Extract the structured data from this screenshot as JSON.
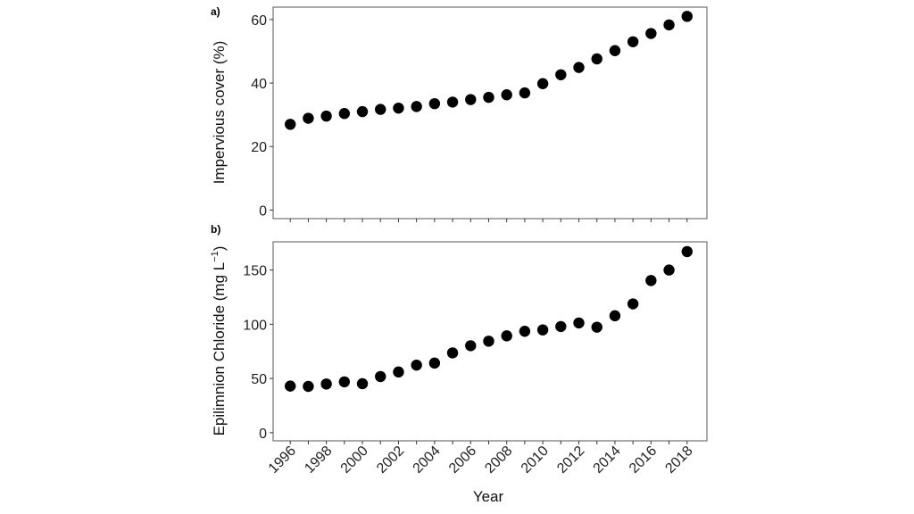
{
  "chart_data": [
    {
      "type": "scatter",
      "panel_label": "a)",
      "xlabel": "",
      "ylabel": "Impervious cover (%)",
      "ylim": [
        -2.7,
        63.9
      ],
      "yticks": [
        0,
        20,
        40,
        60
      ],
      "xlim": [
        1995.05,
        2019.1
      ],
      "xticks": [
        1996,
        1997,
        1998,
        1999,
        2000,
        2001,
        2002,
        2003,
        2004,
        2005,
        2006,
        2007,
        2008,
        2009,
        2010,
        2011,
        2012,
        2013,
        2014,
        2015,
        2016,
        2017,
        2018
      ],
      "grid": false,
      "marker_color": "#000000",
      "x": [
        1996,
        1997,
        1998,
        1999,
        2000,
        2001,
        2002,
        2003,
        2004,
        2005,
        2006,
        2007,
        2008,
        2009,
        2010,
        2011,
        2012,
        2013,
        2014,
        2015,
        2016,
        2017,
        2018
      ],
      "y": [
        27.0,
        28.9,
        29.6,
        30.4,
        31.0,
        31.7,
        32.1,
        32.6,
        33.5,
        34.0,
        34.8,
        35.5,
        36.3,
        36.9,
        39.8,
        42.6,
        44.9,
        47.6,
        50.2,
        53.0,
        55.6,
        58.3,
        61.0
      ]
    },
    {
      "type": "scatter",
      "panel_label": "b)",
      "xlabel": "Year",
      "ylabel": "Epilimnion Chloride (mg L",
      "ylabel_superscript": "−1",
      "ylabel_close": ")",
      "ylim": [
        -7.5,
        176
      ],
      "yticks": [
        0,
        50,
        100,
        150
      ],
      "xlim": [
        1995.05,
        2019.1
      ],
      "xticks": [
        1996,
        1997,
        1998,
        1999,
        2000,
        2001,
        2002,
        2003,
        2004,
        2005,
        2006,
        2007,
        2008,
        2009,
        2010,
        2011,
        2012,
        2013,
        2014,
        2015,
        2016,
        2017,
        2018
      ],
      "xtick_labels": [
        "1996",
        "1998",
        "2000",
        "2002",
        "2004",
        "2006",
        "2008",
        "2010",
        "2012",
        "2014",
        "2016",
        "2018"
      ],
      "grid": false,
      "marker_color": "#000000",
      "x": [
        1996,
        1997,
        1998,
        1999,
        2000,
        2001,
        2002,
        2003,
        2004,
        2005,
        2006,
        2007,
        2008,
        2009,
        2010,
        2011,
        2012,
        2013,
        2014,
        2015,
        2016,
        2017,
        2018
      ],
      "y": [
        43.0,
        42.7,
        44.9,
        46.9,
        45.2,
        51.8,
        56.0,
        62.3,
        64.2,
        73.6,
        80.2,
        84.4,
        89.3,
        93.5,
        94.8,
        97.9,
        101.2,
        97.3,
        107.8,
        118.8,
        140.3,
        150.0,
        167.0
      ]
    }
  ]
}
